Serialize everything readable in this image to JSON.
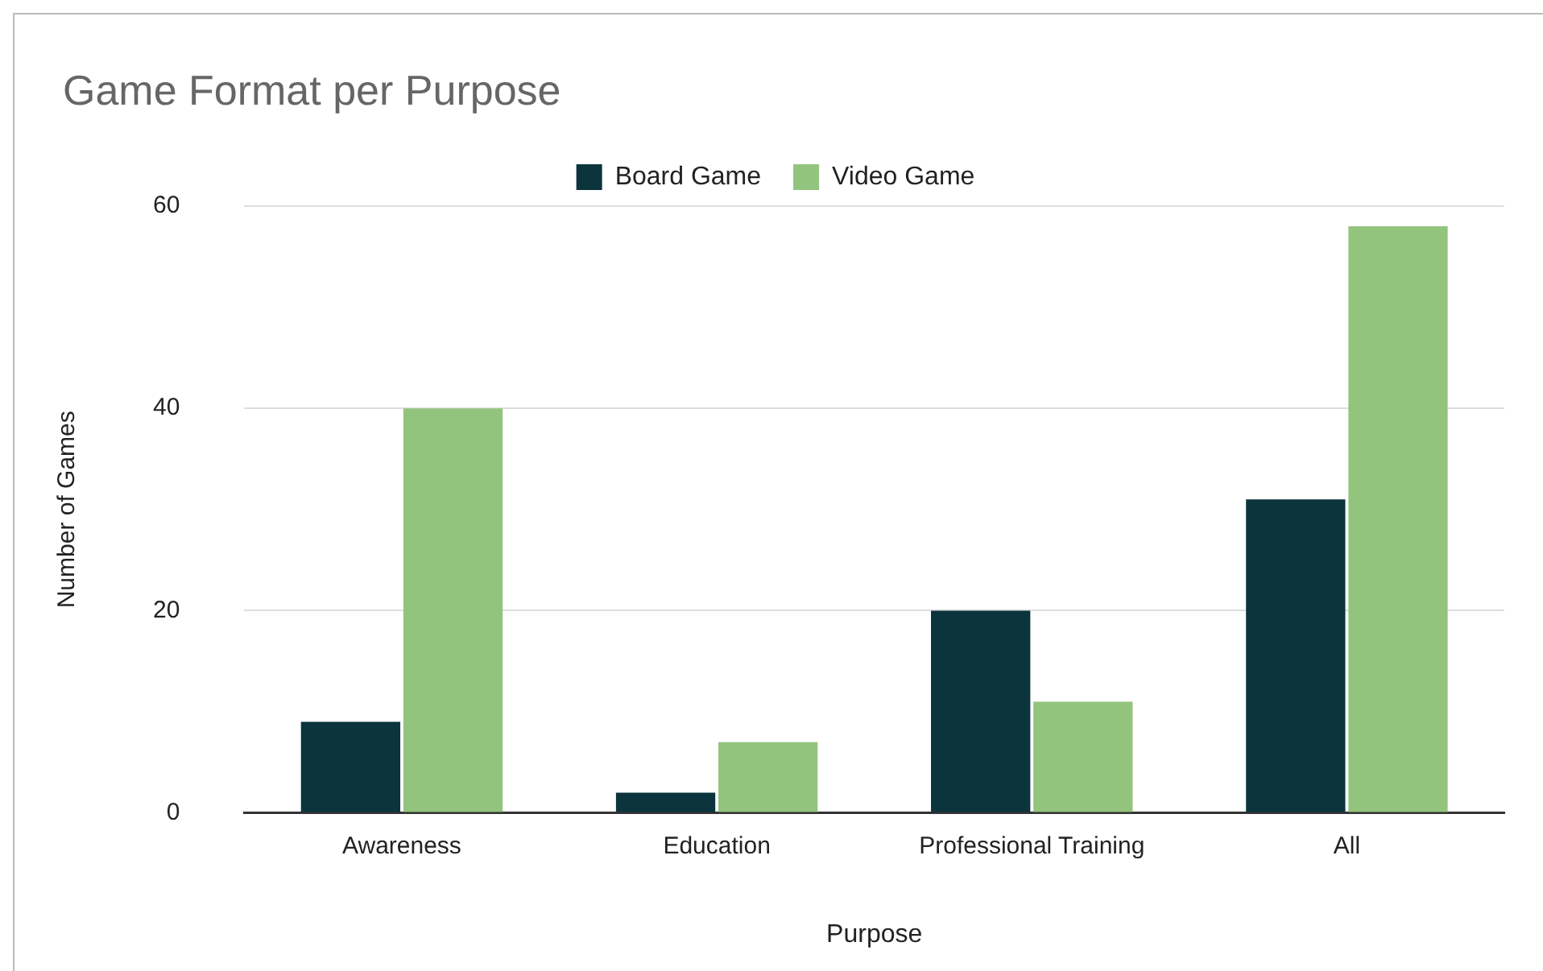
{
  "chart_data": {
    "type": "bar",
    "title": "Game Format per Purpose",
    "xlabel": "Purpose",
    "ylabel": "Number of Games",
    "categories": [
      "Awareness",
      "Education",
      "Professional Training",
      "All"
    ],
    "series": [
      {
        "name": "Board Game",
        "color": "#0c343d",
        "values": [
          9,
          2,
          20,
          31
        ]
      },
      {
        "name": "Video Game",
        "color": "#93c47d",
        "values": [
          40,
          7,
          11,
          58
        ]
      }
    ],
    "ylim": [
      0,
      60
    ],
    "yticks": [
      0,
      20,
      40,
      60
    ],
    "grid": "y",
    "legend": "top"
  }
}
